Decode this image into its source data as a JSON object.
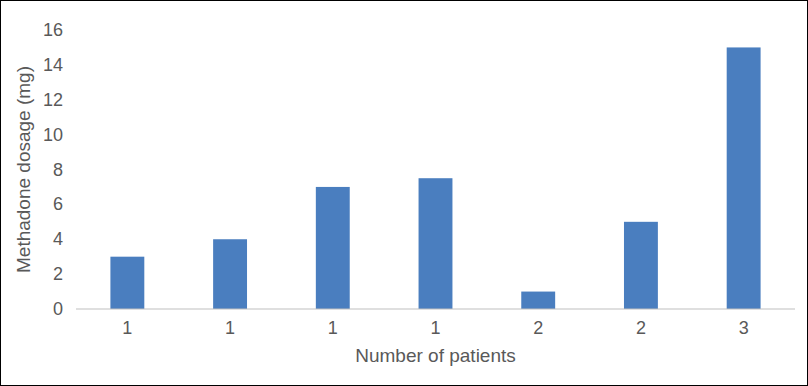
{
  "chart_data": {
    "type": "bar",
    "x_label": "Number of patients",
    "y_label": "Methadone dosage (mg)",
    "categories": [
      "1",
      "1",
      "1",
      "1",
      "2",
      "2",
      "3"
    ],
    "values": [
      3,
      4,
      7,
      7.5,
      1,
      5,
      15
    ],
    "color": "#4a7ebf",
    "ylim": [
      0,
      16
    ],
    "yticks": [
      0,
      2,
      4,
      6,
      8,
      10,
      12,
      14,
      16
    ],
    "grid": false
  }
}
